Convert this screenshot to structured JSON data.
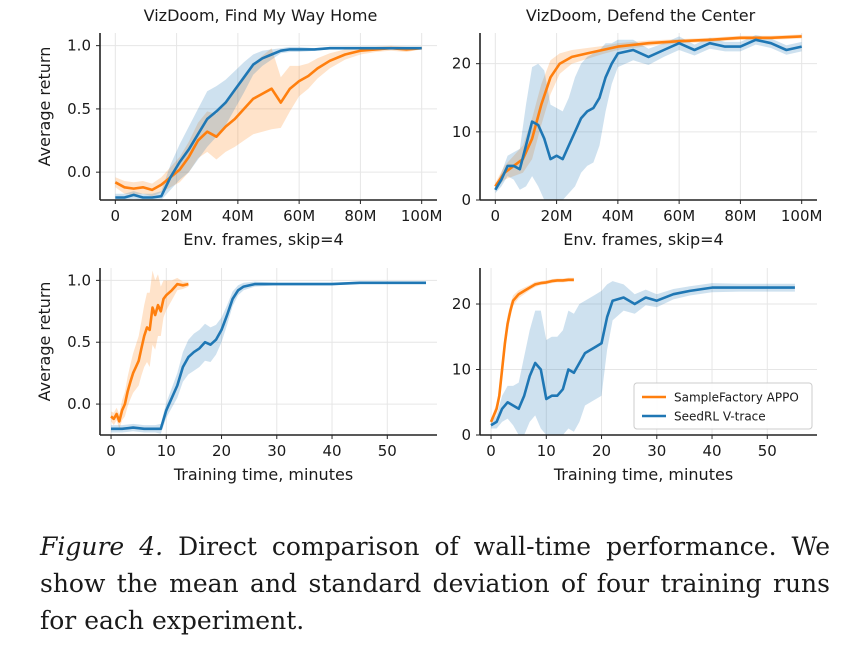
{
  "colors": {
    "orange": "#ff7f0e",
    "blue": "#1f77b4",
    "grid": "#e6e6e6"
  },
  "legend": [
    {
      "label": "SampleFactory APPO",
      "color": "#ff7f0e"
    },
    {
      "label": "SeedRL V-trace",
      "color": "#1f77b4"
    }
  ],
  "caption": {
    "label": "Figure 4.",
    "text": " Direct comparison of wall-time performance. We show the mean and standard deviation of four training runs for each experiment."
  },
  "chart_data": [
    {
      "type": "line",
      "title": "VizDoom, Find My Way Home",
      "xlabel": "Env. frames, skip=4",
      "ylabel": "Average return",
      "xlim": [
        -5,
        105
      ],
      "ylim": [
        -0.22,
        1.1
      ],
      "xticks": [
        0,
        20,
        40,
        60,
        80,
        100
      ],
      "xtick_labels": [
        "0",
        "20M",
        "40M",
        "60M",
        "80M",
        "100M"
      ],
      "yticks": [
        0.0,
        0.5,
        1.0
      ],
      "ytick_labels": [
        "0.0",
        "0.5",
        "1.0"
      ],
      "grid": true,
      "series": [
        {
          "name": "SampleFactory APPO",
          "color": "#ff7f0e",
          "x": [
            0,
            3,
            6,
            9,
            12,
            15,
            18,
            21,
            24,
            27,
            30,
            33,
            36,
            39,
            42,
            45,
            48,
            51,
            54,
            57,
            60,
            63,
            66,
            70,
            75,
            80,
            85,
            90,
            95,
            100
          ],
          "y": [
            -0.08,
            -0.12,
            -0.13,
            -0.12,
            -0.14,
            -0.1,
            -0.04,
            0.02,
            0.12,
            0.25,
            0.32,
            0.28,
            0.36,
            0.42,
            0.5,
            0.58,
            0.62,
            0.66,
            0.55,
            0.66,
            0.72,
            0.76,
            0.82,
            0.88,
            0.93,
            0.96,
            0.97,
            0.98,
            0.97,
            0.98
          ],
          "std": [
            0.04,
            0.05,
            0.05,
            0.05,
            0.05,
            0.06,
            0.08,
            0.1,
            0.12,
            0.14,
            0.16,
            0.18,
            0.2,
            0.22,
            0.25,
            0.28,
            0.3,
            0.32,
            0.2,
            0.18,
            0.12,
            0.1,
            0.08,
            0.06,
            0.04,
            0.03,
            0.02,
            0.02,
            0.02,
            0.01
          ]
        },
        {
          "name": "SeedRL V-trace",
          "color": "#1f77b4",
          "x": [
            0,
            3,
            6,
            9,
            12,
            15,
            18,
            21,
            24,
            27,
            30,
            33,
            36,
            39,
            42,
            45,
            48,
            51,
            54,
            57,
            60,
            65,
            70,
            80,
            90,
            100
          ],
          "y": [
            -0.2,
            -0.2,
            -0.18,
            -0.2,
            -0.2,
            -0.19,
            -0.04,
            0.08,
            0.18,
            0.3,
            0.42,
            0.48,
            0.55,
            0.65,
            0.75,
            0.85,
            0.9,
            0.93,
            0.96,
            0.97,
            0.97,
            0.97,
            0.98,
            0.98,
            0.98,
            0.98
          ],
          "std": [
            0.03,
            0.03,
            0.03,
            0.03,
            0.03,
            0.04,
            0.1,
            0.14,
            0.18,
            0.2,
            0.22,
            0.2,
            0.18,
            0.15,
            0.12,
            0.08,
            0.06,
            0.04,
            0.02,
            0.02,
            0.02,
            0.01,
            0.01,
            0.01,
            0.01,
            0.01
          ]
        }
      ]
    },
    {
      "type": "line",
      "title": "VizDoom, Defend the Center",
      "xlabel": "Env. frames, skip=4",
      "ylabel": "",
      "xlim": [
        -5,
        105
      ],
      "ylim": [
        0,
        24.5
      ],
      "xticks": [
        0,
        20,
        40,
        60,
        80,
        100
      ],
      "xtick_labels": [
        "0",
        "20M",
        "40M",
        "60M",
        "80M",
        "100M"
      ],
      "yticks": [
        0,
        10,
        20
      ],
      "ytick_labels": [
        "0",
        "10",
        "20"
      ],
      "grid": true,
      "series": [
        {
          "name": "SampleFactory APPO",
          "color": "#ff7f0e",
          "x": [
            0,
            3,
            6,
            9,
            12,
            15,
            18,
            21,
            25,
            30,
            35,
            40,
            50,
            60,
            70,
            80,
            90,
            100
          ],
          "y": [
            2,
            4,
            5,
            6,
            9,
            14,
            18,
            20,
            21,
            21.5,
            22,
            22.5,
            23,
            23.3,
            23.5,
            23.8,
            23.8,
            24
          ],
          "std": [
            0.5,
            1,
            1.5,
            2,
            3,
            3,
            2.5,
            1.5,
            1,
            0.8,
            0.6,
            0.5,
            0.4,
            0.3,
            0.3,
            0.3,
            0.3,
            0.3
          ]
        },
        {
          "name": "SeedRL V-trace",
          "color": "#1f77b4",
          "x": [
            0,
            2,
            4,
            6,
            8,
            10,
            12,
            14,
            16,
            18,
            20,
            22,
            24,
            26,
            28,
            30,
            32,
            34,
            36,
            38,
            40,
            45,
            50,
            55,
            60,
            65,
            70,
            75,
            80,
            85,
            90,
            95,
            100
          ],
          "y": [
            1.5,
            3,
            5,
            5,
            4.5,
            8,
            11.5,
            11,
            9,
            6,
            6.5,
            6,
            8,
            10,
            12,
            13,
            13.5,
            15,
            18,
            20,
            21.5,
            22,
            21,
            22,
            23,
            22,
            23,
            22.5,
            22.5,
            23.5,
            23,
            22,
            22.5
          ],
          "std": [
            0.5,
            1,
            1.5,
            2,
            3,
            6,
            8,
            9,
            10,
            8,
            7,
            7,
            7,
            8,
            8,
            8,
            8,
            7,
            5,
            3,
            2,
            1.5,
            1.2,
            1,
            1,
            0.8,
            0.8,
            0.7,
            0.7,
            0.7,
            0.7,
            0.7,
            0.7
          ]
        }
      ]
    },
    {
      "type": "line",
      "title": "",
      "xlabel": "Training time, minutes",
      "ylabel": "Average return",
      "xlim": [
        -2,
        59
      ],
      "ylim": [
        -0.25,
        1.1
      ],
      "xticks": [
        0,
        10,
        20,
        30,
        40,
        50
      ],
      "xtick_labels": [
        "0",
        "10",
        "20",
        "30",
        "40",
        "50"
      ],
      "yticks": [
        0.0,
        0.5,
        1.0
      ],
      "ytick_labels": [
        "0.0",
        "0.5",
        "1.0"
      ],
      "grid": true,
      "series": [
        {
          "name": "SampleFactory APPO",
          "color": "#ff7f0e",
          "x": [
            0,
            0.5,
            1,
            1.5,
            2,
            2.5,
            3,
            3.5,
            4,
            4.5,
            5,
            5.5,
            6,
            6.5,
            7,
            7.5,
            8,
            8.5,
            9,
            9.5,
            10,
            11,
            12,
            13,
            14
          ],
          "y": [
            -0.1,
            -0.12,
            -0.08,
            -0.14,
            -0.05,
            0.0,
            0.1,
            0.18,
            0.25,
            0.3,
            0.35,
            0.45,
            0.55,
            0.62,
            0.6,
            0.78,
            0.72,
            0.8,
            0.75,
            0.85,
            0.88,
            0.92,
            0.97,
            0.96,
            0.97
          ],
          "std": [
            0.04,
            0.05,
            0.05,
            0.06,
            0.08,
            0.1,
            0.12,
            0.14,
            0.16,
            0.18,
            0.2,
            0.22,
            0.25,
            0.28,
            0.3,
            0.3,
            0.28,
            0.25,
            0.2,
            0.15,
            0.12,
            0.08,
            0.05,
            0.03,
            0.02
          ]
        },
        {
          "name": "SeedRL V-trace",
          "color": "#1f77b4",
          "x": [
            0,
            2,
            4,
            6,
            8,
            9,
            10,
            11,
            12,
            13,
            14,
            15,
            16,
            17,
            18,
            19,
            20,
            21,
            22,
            23,
            24,
            26,
            30,
            35,
            40,
            45,
            50,
            55,
            57
          ],
          "y": [
            -0.2,
            -0.2,
            -0.19,
            -0.2,
            -0.2,
            -0.2,
            -0.05,
            0.05,
            0.15,
            0.3,
            0.38,
            0.42,
            0.45,
            0.5,
            0.48,
            0.52,
            0.6,
            0.72,
            0.85,
            0.92,
            0.95,
            0.97,
            0.97,
            0.97,
            0.97,
            0.98,
            0.98,
            0.98,
            0.98
          ],
          "std": [
            0.03,
            0.03,
            0.03,
            0.03,
            0.03,
            0.04,
            0.06,
            0.08,
            0.1,
            0.12,
            0.14,
            0.15,
            0.15,
            0.15,
            0.14,
            0.12,
            0.1,
            0.08,
            0.06,
            0.04,
            0.03,
            0.02,
            0.01,
            0.01,
            0.01,
            0.01,
            0.01,
            0.01,
            0.01
          ]
        }
      ]
    },
    {
      "type": "line",
      "title": "",
      "xlabel": "Training time, minutes",
      "ylabel": "",
      "xlim": [
        -2,
        59
      ],
      "ylim": [
        0,
        25.5
      ],
      "xticks": [
        0,
        10,
        20,
        30,
        40,
        50
      ],
      "xtick_labels": [
        "0",
        "10",
        "20",
        "30",
        "40",
        "50"
      ],
      "yticks": [
        0,
        10,
        20
      ],
      "ytick_labels": [
        "0",
        "10",
        "20"
      ],
      "grid": true,
      "legend": "lower right",
      "series": [
        {
          "name": "SampleFactory APPO",
          "color": "#ff7f0e",
          "x": [
            0,
            0.5,
            1,
            1.5,
            2,
            2.5,
            3,
            3.5,
            4,
            5,
            6,
            7,
            8,
            9,
            10,
            11,
            12,
            13,
            14,
            15
          ],
          "y": [
            2,
            3,
            4,
            6,
            10,
            14,
            17,
            19,
            20.5,
            21.5,
            22,
            22.5,
            23,
            23.2,
            23.3,
            23.5,
            23.6,
            23.6,
            23.7,
            23.7
          ],
          "std": [
            0.5,
            0.6,
            0.8,
            1,
            1.5,
            1.5,
            1.2,
            1,
            0.8,
            0.6,
            0.5,
            0.4,
            0.4,
            0.3,
            0.3,
            0.3,
            0.3,
            0.3,
            0.3,
            0.3
          ]
        },
        {
          "name": "SeedRL V-trace",
          "color": "#1f77b4",
          "x": [
            0,
            1,
            2,
            3,
            4,
            5,
            6,
            7,
            8,
            9,
            10,
            11,
            12,
            13,
            14,
            15,
            16,
            17,
            18,
            19,
            20,
            21,
            22,
            24,
            26,
            28,
            30,
            33,
            36,
            40,
            45,
            50,
            55
          ],
          "y": [
            1.5,
            2,
            4,
            5,
            4.5,
            4,
            6,
            9,
            11,
            10,
            5.5,
            6,
            6,
            7,
            10,
            9.5,
            11,
            12.5,
            13,
            13.5,
            14,
            18,
            20.5,
            21,
            20,
            21,
            20.5,
            21.5,
            22,
            22.5,
            22.5,
            22.5,
            22.5
          ],
          "std": [
            0.5,
            1,
            2,
            2.5,
            3,
            4,
            6,
            7,
            8,
            9,
            9,
            9,
            9,
            9,
            9,
            9,
            9,
            8,
            8,
            8,
            8,
            5,
            3,
            2,
            1.5,
            1.2,
            1,
            0.8,
            0.7,
            0.7,
            0.6,
            0.6,
            0.6
          ]
        }
      ]
    }
  ]
}
